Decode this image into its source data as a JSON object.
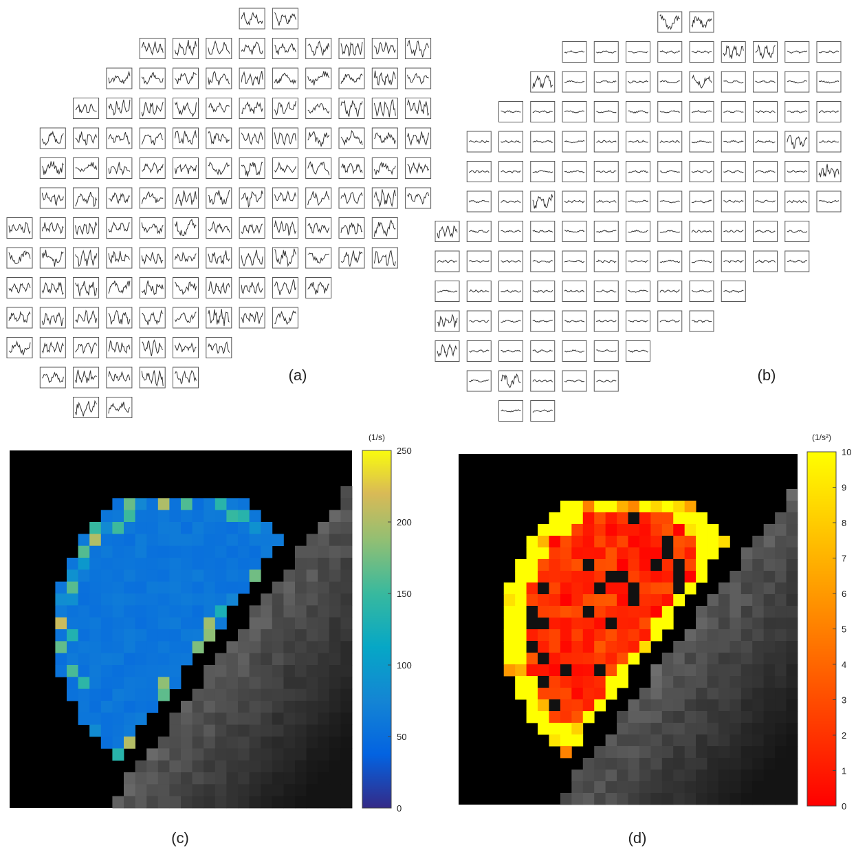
{
  "panels": [
    {
      "label": "(a)"
    },
    {
      "label": "(b)"
    },
    {
      "label": "(c)",
      "colorbar": {
        "unit": "(1/s)",
        "lim": [
          0,
          250
        ],
        "ticks": [
          0,
          50,
          100,
          150,
          200,
          250
        ]
      }
    },
    {
      "label": "(d)",
      "colorbar": {
        "unit": "(1/s²)",
        "lim": [
          0,
          10
        ],
        "ticks": [
          0,
          1,
          2,
          3,
          4,
          5,
          6,
          7,
          8,
          9,
          10
        ]
      }
    }
  ]
}
